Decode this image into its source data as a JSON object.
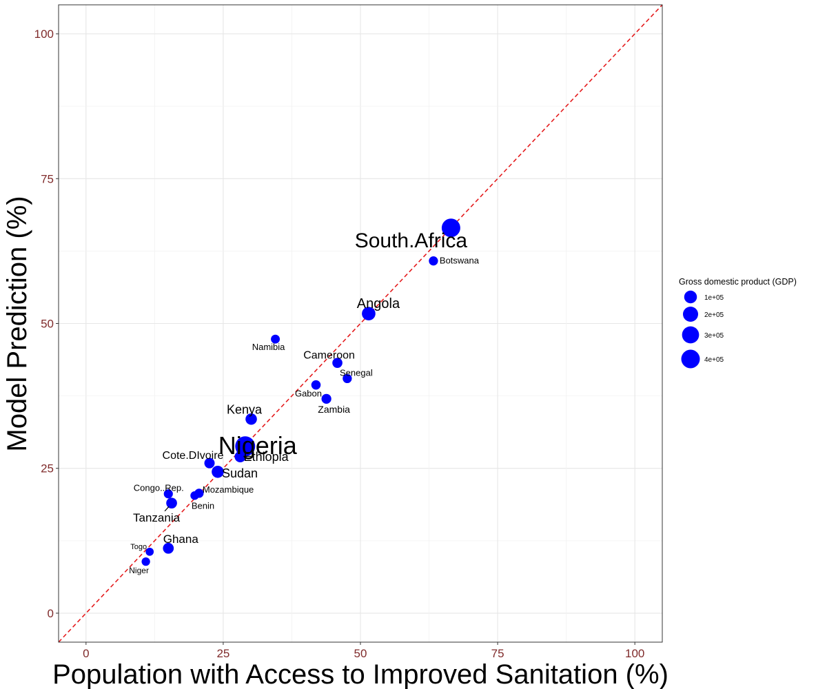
{
  "chart_data": {
    "type": "scatter",
    "title": "",
    "xlabel": "Population with Access to Improved Sanitation (%)",
    "ylabel": "Model Prediction (%)",
    "xlim": [
      -5,
      105
    ],
    "ylim": [
      -5,
      105
    ],
    "x_ticks": [
      "0",
      "25",
      "50",
      "75",
      "100"
    ],
    "y_ticks": [
      "0",
      "25",
      "50",
      "75",
      "100"
    ],
    "grid": true,
    "reference_line": {
      "type": "identity",
      "style": "dashed",
      "color": "#e41a1c"
    },
    "point_color": "#0000ff",
    "tick_label_color": "#7f2a2a",
    "legend": {
      "title": "Gross domestic product (GDP)",
      "placement": "right",
      "entries": [
        {
          "label": "1e+05",
          "value": 100000
        },
        {
          "label": "2e+05",
          "value": 200000
        },
        {
          "label": "3e+05",
          "value": 300000
        },
        {
          "label": "4e+05",
          "value": 400000
        }
      ]
    },
    "points": [
      {
        "label": "South.Africa",
        "x": 66.5,
        "y": 66.5,
        "gdp": 400000
      },
      {
        "label": "Botswana",
        "x": 63.3,
        "y": 60.8,
        "gdp": 15000
      },
      {
        "label": "Angola",
        "x": 51.5,
        "y": 51.7,
        "gdp": 130000
      },
      {
        "label": "Namibia",
        "x": 34.5,
        "y": 47.3,
        "gdp": 12000
      },
      {
        "label": "Cameroon",
        "x": 45.8,
        "y": 43.2,
        "gdp": 30000
      },
      {
        "label": "Senegal",
        "x": 47.6,
        "y": 40.5,
        "gdp": 15000
      },
      {
        "label": "Gabon",
        "x": 41.9,
        "y": 39.4,
        "gdp": 18000
      },
      {
        "label": "Zambia",
        "x": 43.8,
        "y": 37.0,
        "gdp": 25000
      },
      {
        "label": "Kenya",
        "x": 30.1,
        "y": 33.5,
        "gdp": 60000
      },
      {
        "label": "Nigeria",
        "x": 29.0,
        "y": 28.8,
        "gdp": 500000
      },
      {
        "label": "Ethiopia",
        "x": 28.1,
        "y": 27.0,
        "gdp": 55000
      },
      {
        "label": "Cote.DIvoire",
        "x": 22.5,
        "y": 25.9,
        "gdp": 35000
      },
      {
        "label": "Sudan",
        "x": 24.0,
        "y": 24.4,
        "gdp": 80000
      },
      {
        "label": "Congo..Rep.",
        "x": 15.0,
        "y": 20.6,
        "gdp": 14000
      },
      {
        "label": "Mozambique",
        "x": 20.6,
        "y": 20.7,
        "gdp": 15000
      },
      {
        "label": "Benin",
        "x": 19.8,
        "y": 20.3,
        "gdp": 8000
      },
      {
        "label": "Tanzania",
        "x": 15.6,
        "y": 19.0,
        "gdp": 45000
      },
      {
        "label": "Ghana",
        "x": 15.0,
        "y": 11.2,
        "gdp": 45000
      },
      {
        "label": "Togo",
        "x": 11.6,
        "y": 10.6,
        "gdp": 4000
      },
      {
        "label": "Niger",
        "x": 10.9,
        "y": 8.9,
        "gdp": 7000
      }
    ]
  }
}
